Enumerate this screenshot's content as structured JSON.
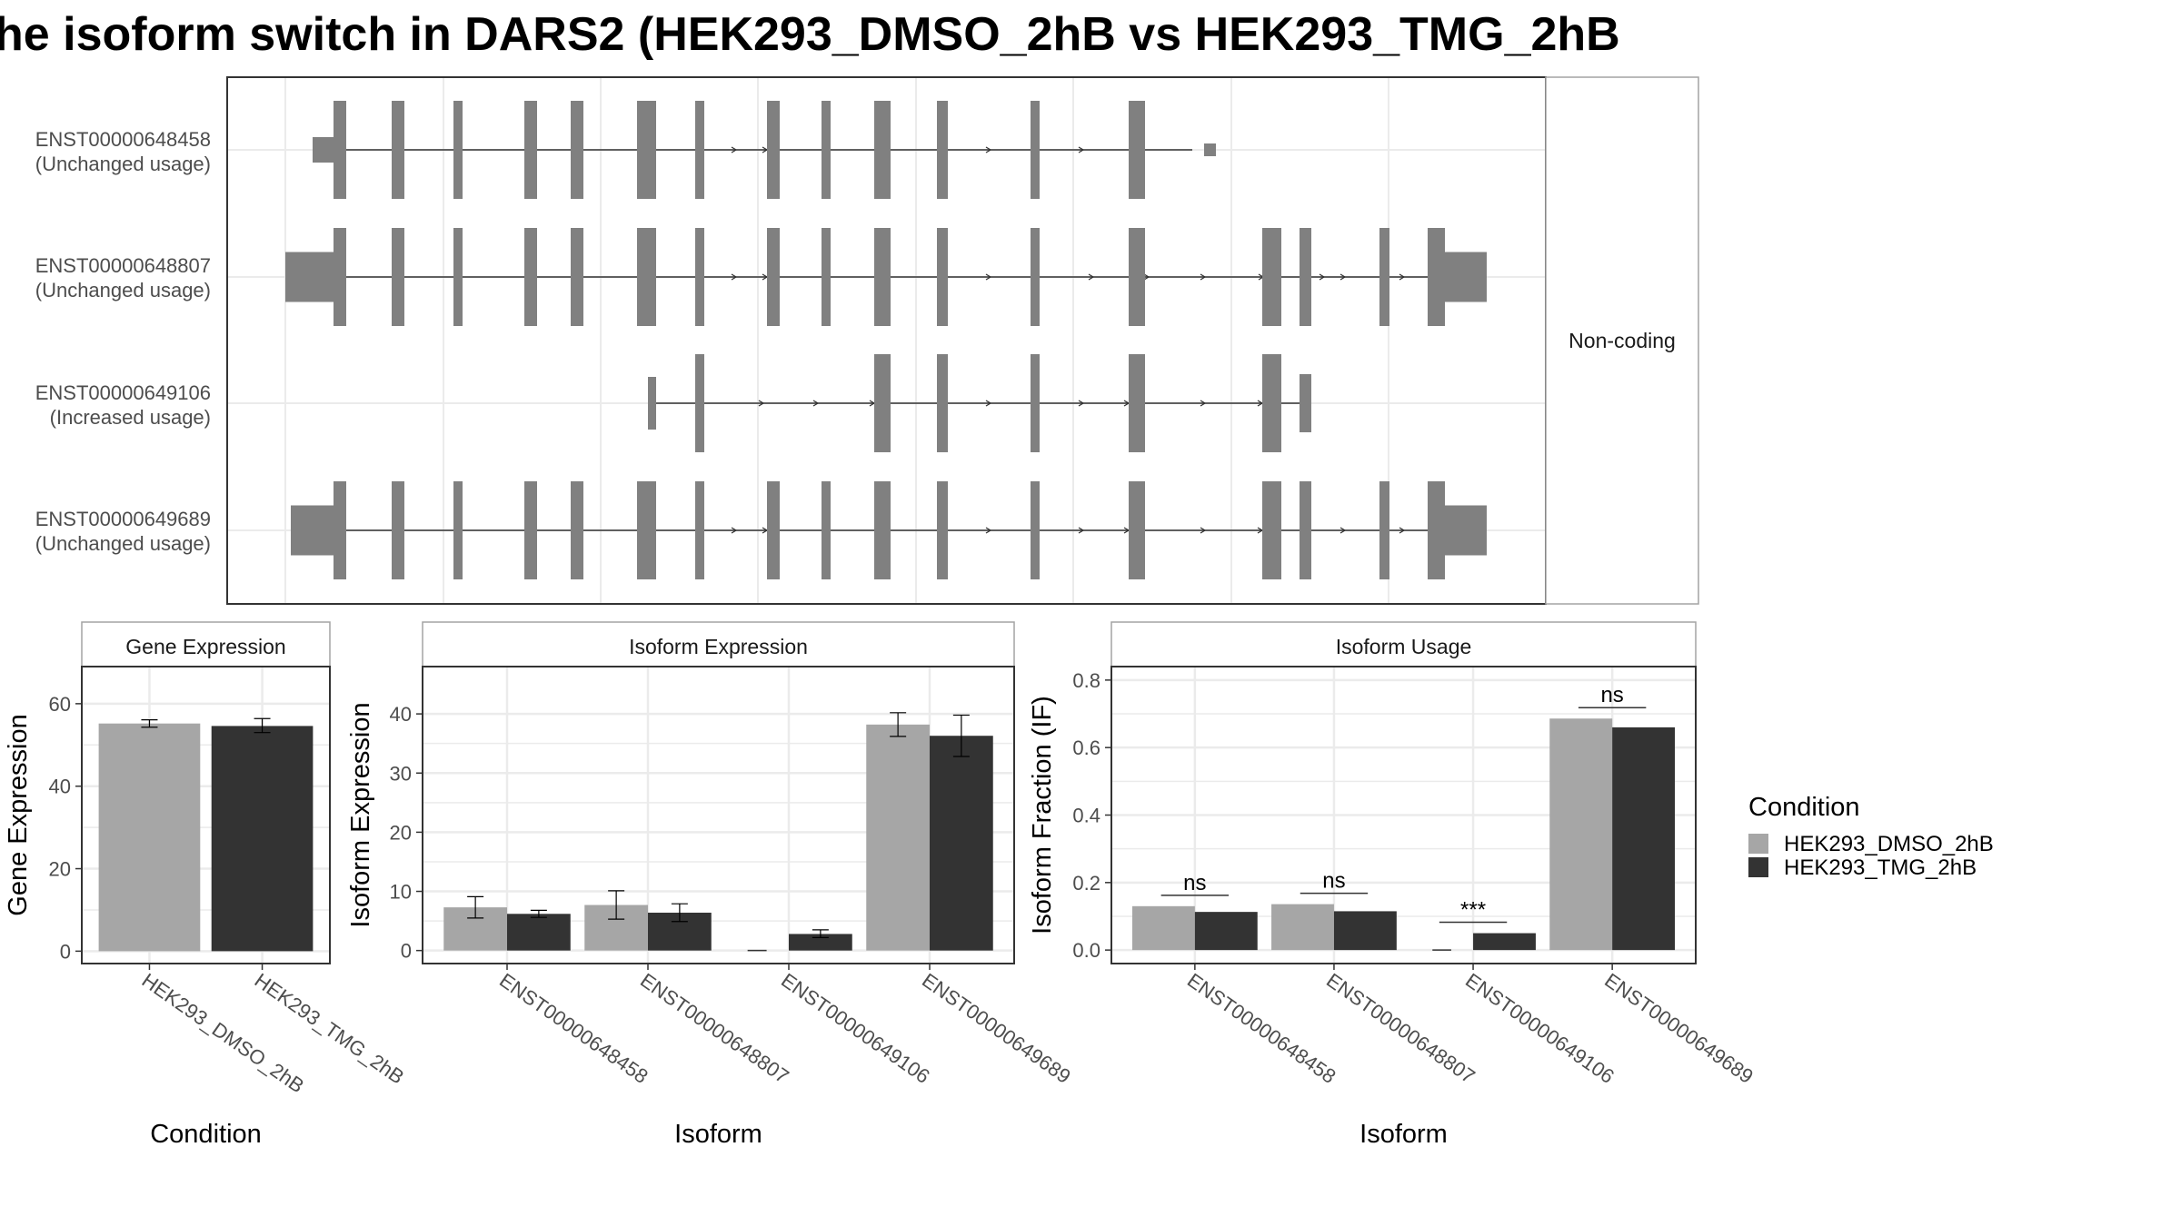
{
  "title": "he isoform switch in DARS2 (HEK293_DMSO_2hB vs HEK293_TMG_2hB",
  "colors": {
    "dmso": "#a6a6a6",
    "tmg": "#333333",
    "exon": "#808080",
    "grid": "#ebebeb",
    "border": "#333333",
    "strip_border": "#a3a3a3"
  },
  "transcripts": {
    "type": "gene_structure",
    "facet_label": "Non-coding",
    "tracks": [
      {
        "id": "ENST00000648458",
        "usage": "(Unchanged usage)"
      },
      {
        "id": "ENST00000648807",
        "usage": "(Unchanged usage)"
      },
      {
        "id": "ENST00000649106",
        "usage": "(Increased usage)"
      },
      {
        "id": "ENST00000649689",
        "usage": "(Unchanged usage)"
      }
    ]
  },
  "legend": {
    "title": "Condition",
    "items": [
      "HEK293_DMSO_2hB",
      "HEK293_TMG_2hB"
    ]
  },
  "chart_data": [
    {
      "type": "bar",
      "strip_title": "Gene Expression",
      "xlabel": "Condition",
      "ylabel": "Gene Expression",
      "categories": [
        "HEK293_DMSO_2hB",
        "HEK293_TMG_2hB"
      ],
      "values": [
        55.2,
        54.6
      ],
      "errors": [
        [
          54.3,
          56.1
        ],
        [
          53.0,
          56.4
        ]
      ],
      "ylim": [
        -3,
        69
      ],
      "yticks": [
        "0",
        "20",
        "40",
        "60"
      ],
      "grid": true
    },
    {
      "type": "bar",
      "strip_title": "Isoform Expression",
      "xlabel": "Isoform",
      "ylabel": "Isoform Expression",
      "categories": [
        "ENST00000648458",
        "ENST00000648807",
        "ENST00000649106",
        "ENST00000649689"
      ],
      "series": [
        {
          "name": "HEK293_DMSO_2hB",
          "values": [
            7.3,
            7.7,
            0.0,
            38.2
          ],
          "errors": [
            [
              5.5,
              9.1
            ],
            [
              5.3,
              10.1
            ],
            [
              0.0,
              0.0
            ],
            [
              36.2,
              40.2
            ]
          ]
        },
        {
          "name": "HEK293_TMG_2hB",
          "values": [
            6.2,
            6.4,
            2.8,
            36.3
          ],
          "errors": [
            [
              5.6,
              6.8
            ],
            [
              4.9,
              7.9
            ],
            [
              2.2,
              3.5
            ],
            [
              32.8,
              39.8
            ]
          ]
        }
      ],
      "ylim": [
        -2.2,
        48
      ],
      "yticks": [
        "0",
        "10",
        "20",
        "30",
        "40"
      ],
      "grid": true
    },
    {
      "type": "bar",
      "strip_title": "Isoform Usage",
      "xlabel": "Isoform",
      "ylabel": "Isoform Fraction (IF)",
      "categories": [
        "ENST00000648458",
        "ENST00000648807",
        "ENST00000649106",
        "ENST00000649689"
      ],
      "series": [
        {
          "name": "HEK293_DMSO_2hB",
          "values": [
            0.13,
            0.136,
            0.0,
            0.686
          ]
        },
        {
          "name": "HEK293_TMG_2hB",
          "values": [
            0.113,
            0.115,
            0.05,
            0.66
          ]
        }
      ],
      "significance": [
        "ns",
        "ns",
        "***",
        "ns"
      ],
      "ylim": [
        -0.04,
        0.84
      ],
      "yticks": [
        "0.0",
        "0.2",
        "0.4",
        "0.6",
        "0.8"
      ],
      "grid": true
    }
  ]
}
